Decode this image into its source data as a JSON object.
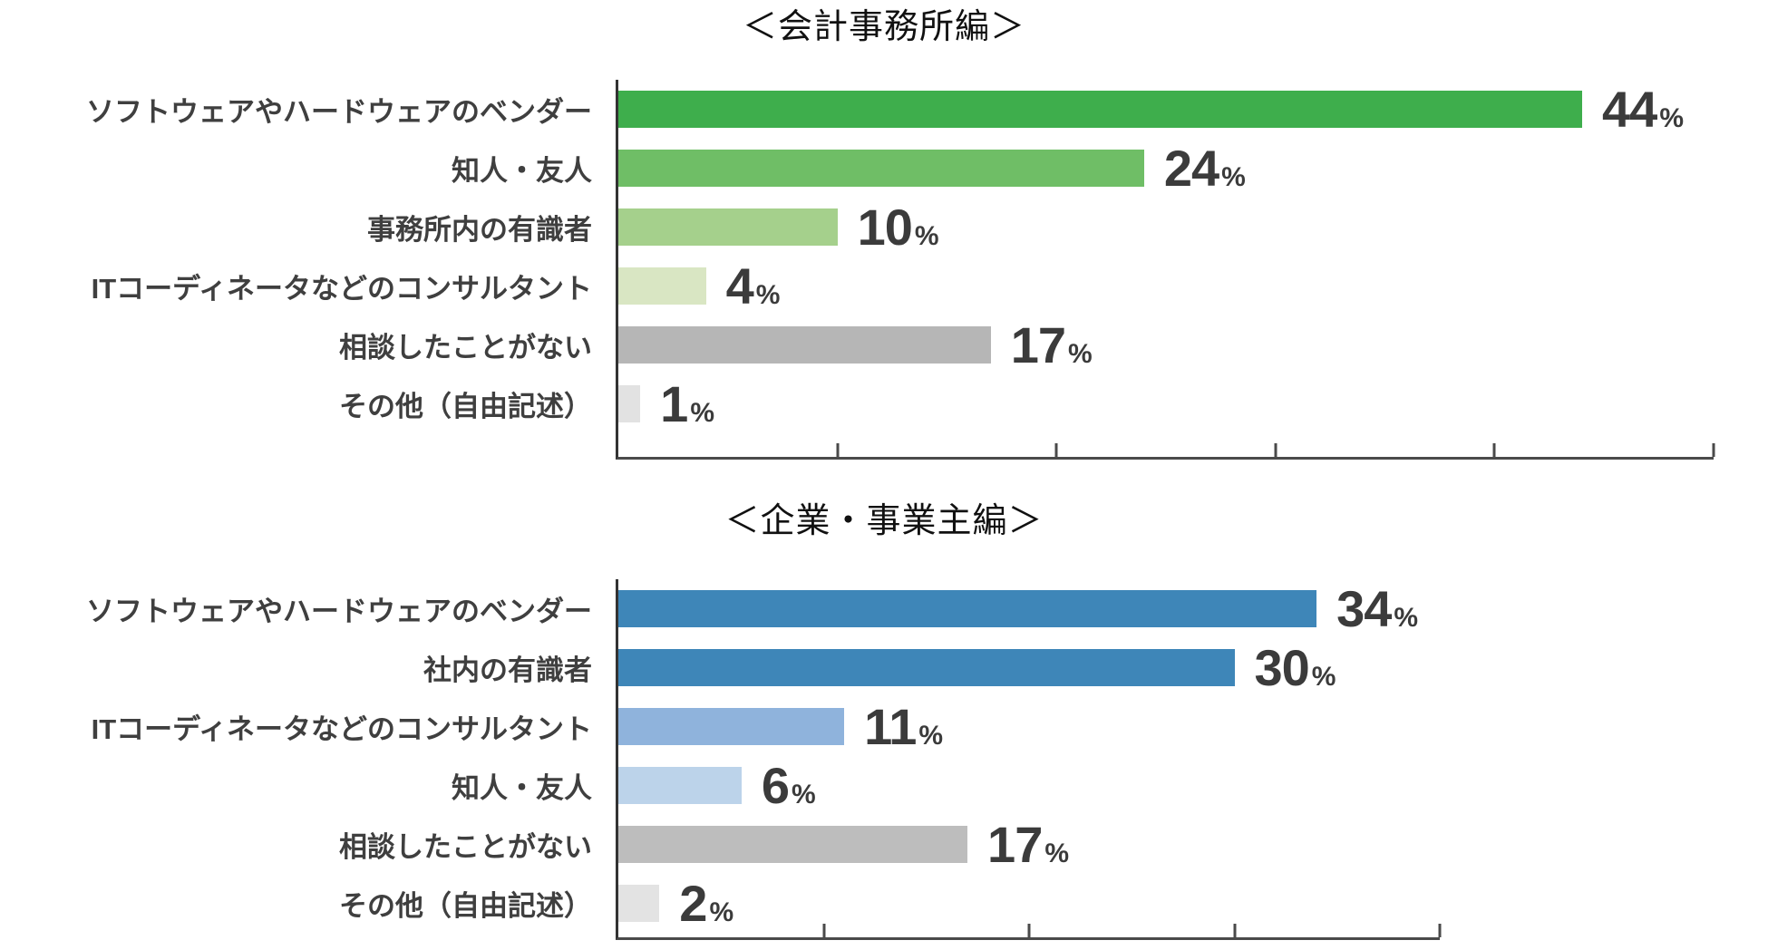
{
  "chart_data": [
    {
      "type": "bar",
      "orientation": "horizontal",
      "title": "＜会計事務所編＞",
      "categories": [
        "ソフトウェアやハードウェアのベンダー",
        "知人・友人",
        "事務所内の有識者",
        "ITコーディネータなどのコンサルタント",
        "相談したことがない",
        "その他（自由記述）"
      ],
      "values": [
        44,
        24,
        10,
        4,
        17,
        1
      ],
      "value_suffix": "%",
      "bar_colors": [
        "#3eae4c",
        "#6fbe66",
        "#a5d08c",
        "#d9e6c3",
        "#b6b6b6",
        "#e2e2e2"
      ],
      "xlim": [
        0,
        50
      ],
      "tick_step": 10,
      "grid": false,
      "legend": false,
      "value_label_color": "#3b3b3b"
    },
    {
      "type": "bar",
      "orientation": "horizontal",
      "title": "＜企業・事業主編＞",
      "categories": [
        "ソフトウェアやハードウェアのベンダー",
        "社内の有識者",
        "ITコーディネータなどのコンサルタント",
        "知人・友人",
        "相談したことがない",
        "その他（自由記述）"
      ],
      "values": [
        34,
        30,
        11,
        6,
        17,
        2
      ],
      "value_suffix": "%",
      "bar_colors": [
        "#3e86b8",
        "#3e86b8",
        "#8fb3dc",
        "#bcd3ea",
        "#bdbdbd",
        "#e3e3e3"
      ],
      "xlim": [
        0,
        40
      ],
      "tick_step": 10,
      "grid": false,
      "legend": false,
      "value_label_color": "#3b3b3b"
    }
  ]
}
